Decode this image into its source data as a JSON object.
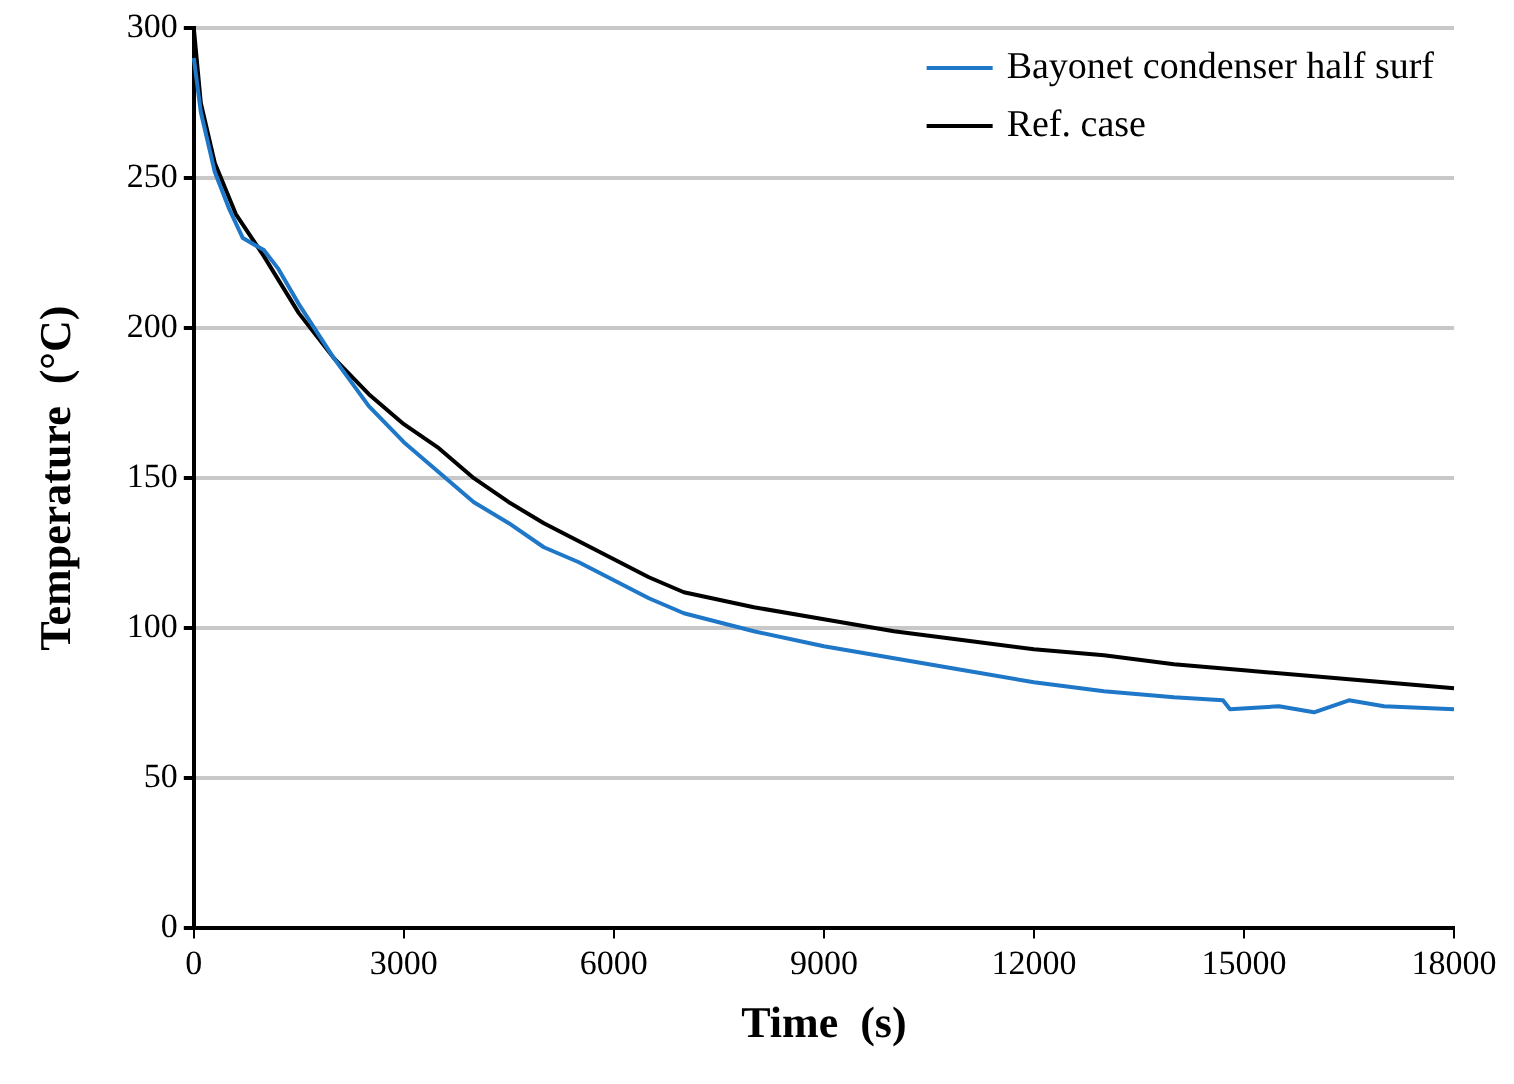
{
  "chart_data": {
    "type": "line",
    "xlabel": "Time  (s)",
    "ylabel": "Temperature  (°C)",
    "xlim": [
      0,
      18000
    ],
    "xticks": [
      0,
      3000,
      6000,
      9000,
      12000,
      15000,
      18000
    ],
    "ylim": [
      0,
      300
    ],
    "yticks": [
      0,
      50,
      100,
      150,
      200,
      250,
      300
    ],
    "grid": "y",
    "legend": "top right",
    "marker": "none",
    "line_style": "solid",
    "series": [
      {
        "name": "Bayonet condenser half surf",
        "color": "#1f77c8",
        "x": [
          0,
          100,
          300,
          500,
          700,
          1000,
          1200,
          1500,
          2000,
          2500,
          3000,
          3500,
          4000,
          4500,
          5000,
          5500,
          6000,
          6500,
          7000,
          8000,
          9000,
          10000,
          11000,
          12000,
          13000,
          14000,
          14700,
          14800,
          15500,
          16000,
          16500,
          17000,
          18000
        ],
        "values": [
          290,
          272,
          252,
          240,
          230,
          226,
          220,
          208,
          190,
          174,
          162,
          152,
          142,
          135,
          127,
          122,
          116,
          110,
          105,
          99,
          94,
          90,
          86,
          82,
          79,
          77,
          76,
          73,
          74,
          72,
          76,
          74,
          73
        ]
      },
      {
        "name": "Ref. case",
        "color": "#000000",
        "x": [
          0,
          100,
          300,
          600,
          1000,
          1500,
          2000,
          2500,
          3000,
          3500,
          4000,
          4500,
          5000,
          5500,
          6000,
          6500,
          7000,
          8000,
          9000,
          10000,
          11000,
          12000,
          13000,
          14000,
          15000,
          16000,
          17000,
          18000
        ],
        "values": [
          300,
          275,
          255,
          238,
          224,
          205,
          190,
          178,
          168,
          160,
          150,
          142,
          135,
          129,
          123,
          117,
          112,
          107,
          103,
          99,
          96,
          93,
          91,
          88,
          86,
          84,
          82,
          80
        ]
      }
    ]
  }
}
